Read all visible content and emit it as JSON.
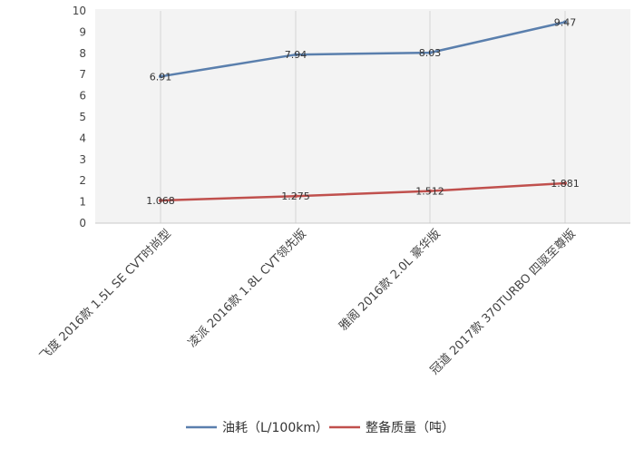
{
  "chart_data": {
    "type": "line",
    "categories": [
      "飞度 2016款 1.5L SE CVT时尚型",
      "凌派 2016款 1.8L CVT领先版",
      "雅阁 2016款 2.0L 豪华版",
      "冠道 2017款 370TURBO 四驱至尊版"
    ],
    "series": [
      {
        "name": "油耗（L/100km）",
        "values": [
          6.91,
          7.94,
          8.03,
          9.47
        ],
        "color": "#5a7fad",
        "labels": [
          "6.91",
          "7.94",
          "8.03",
          "9.47"
        ]
      },
      {
        "name": "整备质量（吨）",
        "values": [
          1.068,
          1.275,
          1.512,
          1.881
        ],
        "color": "#c0504d",
        "labels": [
          "1.068",
          "1.275",
          "1.512",
          "1.881"
        ]
      }
    ],
    "ylim": [
      0,
      10
    ],
    "yticks": [
      "0",
      "1",
      "2",
      "3",
      "4",
      "5",
      "6",
      "7",
      "8",
      "9",
      "10"
    ],
    "grid": "vertical",
    "legend": "bottom"
  }
}
